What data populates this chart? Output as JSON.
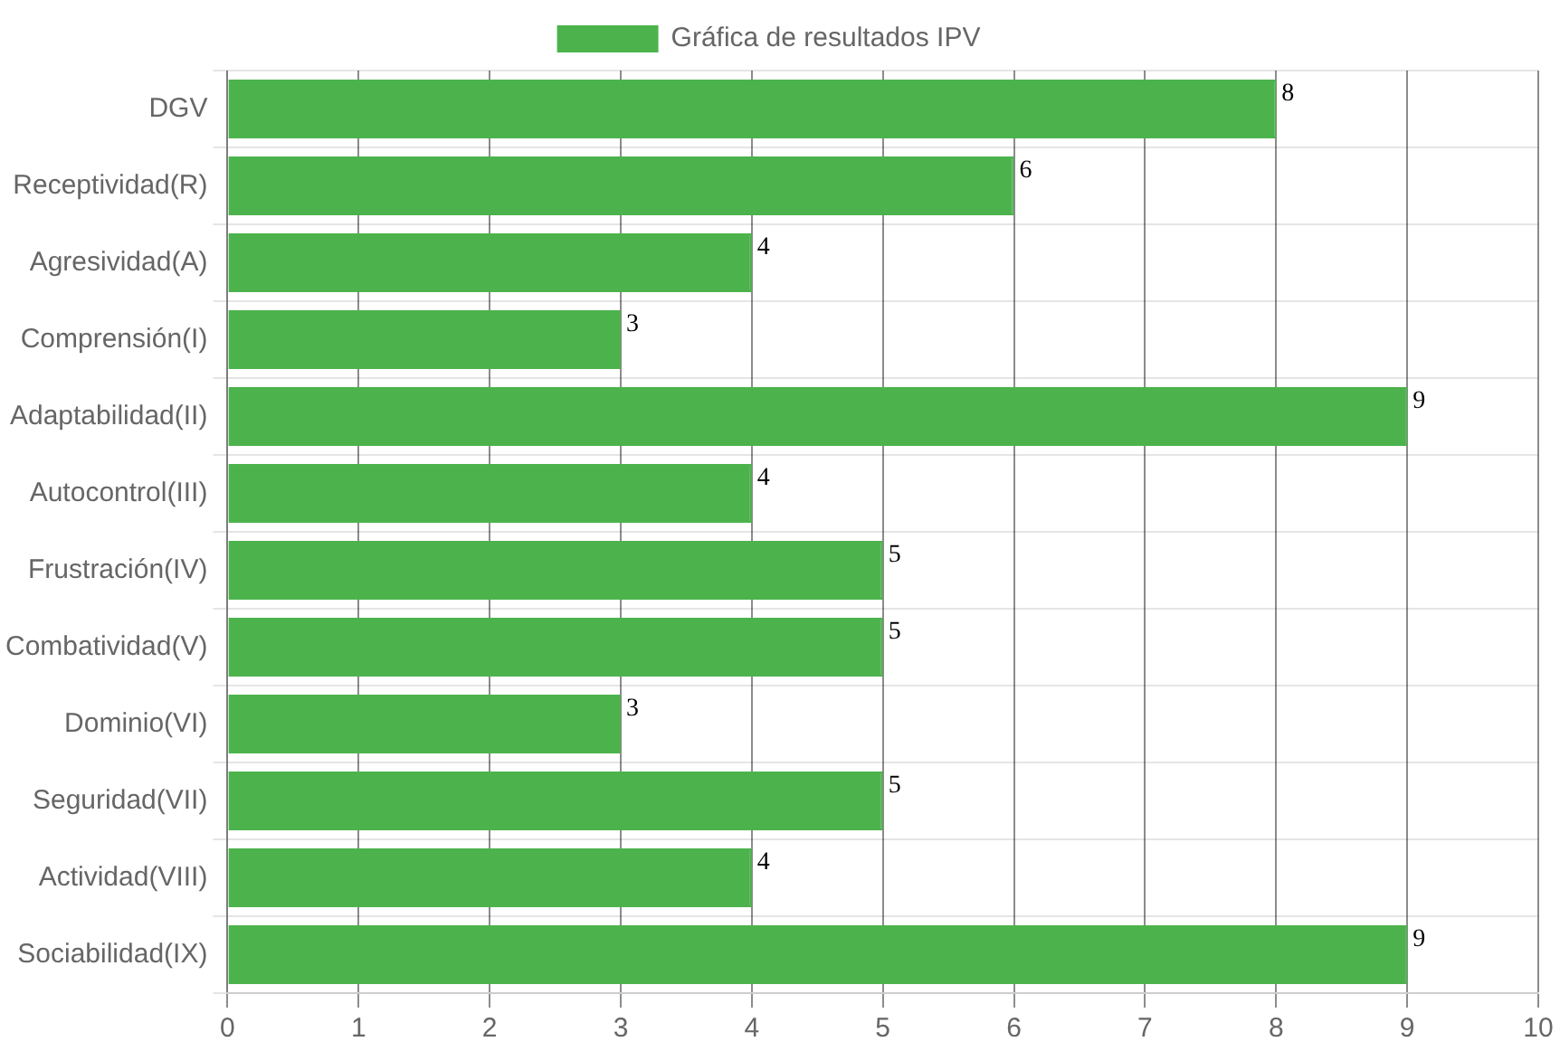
{
  "chart_data": {
    "type": "bar",
    "orientation": "horizontal",
    "categories": [
      "DGV",
      "Receptividad(R)",
      "Agresividad(A)",
      "Comprensión(I)",
      "Adaptabilidad(II)",
      "Autocontrol(III)",
      "Frustración(IV)",
      "Combatividad(V)",
      "Dominio(VI)",
      "Seguridad(VII)",
      "Actividad(VIII)",
      "Sociabilidad(IX)"
    ],
    "series": [
      {
        "name": "Gráfica de resultados IPV",
        "color": "#4cb34c",
        "values": [
          8,
          6,
          4,
          3,
          9,
          4,
          5,
          5,
          3,
          5,
          4,
          9
        ]
      }
    ],
    "xlim": [
      0,
      10
    ],
    "xticks": [
      0,
      1,
      2,
      3,
      4,
      5,
      6,
      7,
      8,
      9,
      10
    ],
    "grid": true,
    "legend": "top",
    "data_labels": true
  }
}
